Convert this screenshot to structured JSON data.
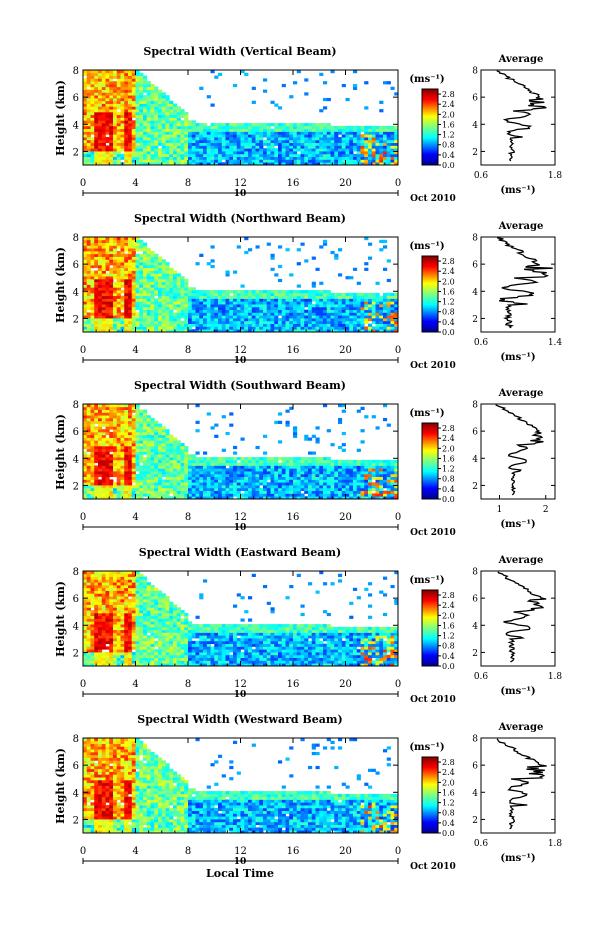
{
  "chart_data": {
    "type": "heatmap",
    "panels": [
      {
        "title": "Spectral Width (Vertical Beam)",
        "profile_x_ticks": [
          "0.6",
          "1.8"
        ],
        "profile_xlim": [
          0.6,
          1.8
        ]
      },
      {
        "title": "Spectral Width (Northward Beam)",
        "profile_x_ticks": [
          "0.6",
          "1.4"
        ],
        "profile_xlim": [
          0.6,
          1.4
        ]
      },
      {
        "title": "Spectral Width (Southward Beam)",
        "profile_x_ticks": [
          "1",
          "2"
        ],
        "profile_xlim": [
          0.6,
          2.2
        ]
      },
      {
        "title": "Spectral Width (Eastward Beam)",
        "profile_x_ticks": [
          "0.6",
          "1.8"
        ],
        "profile_xlim": [
          0.6,
          1.8
        ]
      },
      {
        "title": "Spectral Width (Westward Beam)",
        "profile_x_ticks": [
          "0.6",
          "1.8"
        ],
        "profile_xlim": [
          0.6,
          1.8
        ]
      }
    ],
    "ylabel": "Height (km)",
    "y_ticks": [
      "2",
      "4",
      "6",
      "8"
    ],
    "ylim": [
      1,
      8
    ],
    "x_ticks": [
      "0",
      "4",
      "8",
      "12",
      "16",
      "20",
      "0"
    ],
    "xlim": [
      0,
      24
    ],
    "date_day": "10",
    "date_month_year": "Oct 2010",
    "xlabel": "Local Time",
    "colorbar_unit": "(ms⁻¹)",
    "colorbar_ticks": [
      "0.0",
      "0.4",
      "0.8",
      "1.2",
      "1.6",
      "2.0",
      "2.4",
      "2.8"
    ],
    "colorbar_range": [
      0,
      3.0
    ],
    "profile_title": "Average",
    "profile_xlabel": "(ms⁻¹)",
    "profile_y_ticks": [
      "2",
      "4",
      "6",
      "8"
    ],
    "profile_ylim": [
      1,
      8
    ]
  }
}
